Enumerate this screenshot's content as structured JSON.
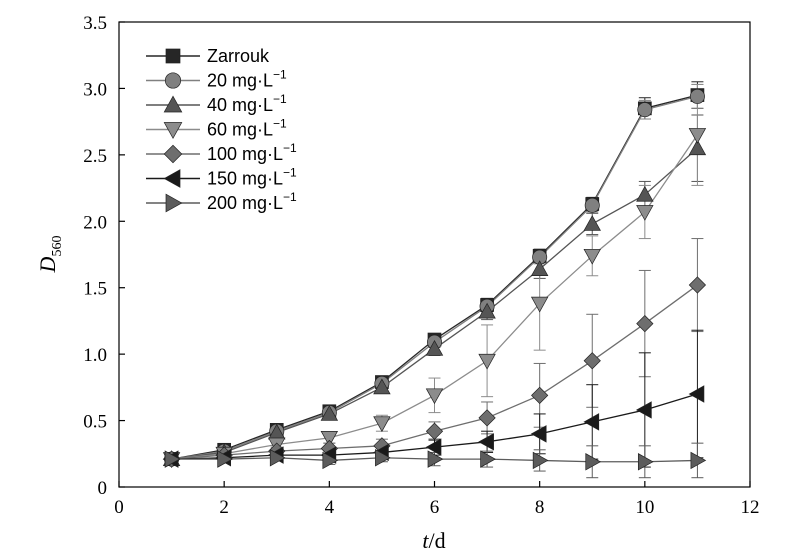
{
  "chart_data": {
    "type": "line",
    "x": [
      1,
      2,
      3,
      4,
      5,
      6,
      7,
      8,
      9,
      10,
      11
    ],
    "xlim": [
      0,
      12
    ],
    "ylim": [
      0,
      3.5
    ],
    "xticks": [
      0,
      2,
      4,
      6,
      8,
      10,
      12
    ],
    "yticks": [
      0,
      0.5,
      1.0,
      1.5,
      2.0,
      2.5,
      3.0,
      3.5
    ],
    "xtick_labels": [
      "0",
      "2",
      "4",
      "6",
      "8",
      "10",
      "12"
    ],
    "ytick_labels": [
      "0",
      "0.5",
      "1.0",
      "1.5",
      "2.0",
      "2.5",
      "3.0",
      "3.5"
    ],
    "xlabel": {
      "var": "t",
      "unit": "/d"
    },
    "ylabel": {
      "var": "D",
      "sub": "560"
    },
    "grid": false,
    "legend_position": "top-left",
    "series": [
      {
        "name": "Zarrouk",
        "sup": "",
        "marker": "square",
        "color": "#262626",
        "values": [
          0.21,
          0.28,
          0.43,
          0.57,
          0.79,
          1.11,
          1.37,
          1.74,
          2.13,
          2.85,
          2.95
        ],
        "errors": [
          0.02,
          0.02,
          0.03,
          0.03,
          0.04,
          0.04,
          0.05,
          0.05,
          0.05,
          0.08,
          0.1
        ]
      },
      {
        "name": "20 mg·L",
        "sup": "−1",
        "marker": "circle",
        "color": "#808080",
        "values": [
          0.21,
          0.27,
          0.42,
          0.56,
          0.78,
          1.09,
          1.36,
          1.73,
          2.12,
          2.84,
          2.94
        ],
        "errors": [
          0.02,
          0.02,
          0.03,
          0.03,
          0.04,
          0.04,
          0.05,
          0.05,
          0.05,
          0.07,
          0.09
        ]
      },
      {
        "name": "40 mg·L",
        "sup": "−1",
        "marker": "triangle-up",
        "color": "#555555",
        "values": [
          0.21,
          0.26,
          0.41,
          0.55,
          0.75,
          1.04,
          1.32,
          1.64,
          1.98,
          2.2,
          2.55
        ],
        "errors": [
          0.02,
          0.02,
          0.03,
          0.03,
          0.04,
          0.05,
          0.06,
          0.07,
          0.08,
          0.1,
          0.25
        ]
      },
      {
        "name": "60 mg·L",
        "sup": "−1",
        "marker": "triangle-down",
        "color": "#8c8c8c",
        "values": [
          0.21,
          0.25,
          0.32,
          0.37,
          0.48,
          0.69,
          0.95,
          1.38,
          1.74,
          2.07,
          2.65
        ],
        "errors": [
          0.02,
          0.02,
          0.03,
          0.04,
          0.06,
          0.13,
          0.27,
          0.35,
          0.15,
          0.2,
          0.38
        ]
      },
      {
        "name": "100 mg·L",
        "sup": "−1",
        "marker": "diamond",
        "color": "#6e6e6e",
        "values": [
          0.21,
          0.24,
          0.27,
          0.29,
          0.31,
          0.42,
          0.52,
          0.69,
          0.95,
          1.23,
          1.52
        ],
        "errors": [
          0.02,
          0.02,
          0.03,
          0.04,
          0.05,
          0.07,
          0.12,
          0.24,
          0.35,
          0.4,
          0.35
        ]
      },
      {
        "name": "150 mg·L",
        "sup": "−1",
        "marker": "triangle-left",
        "color": "#1a1a1a",
        "values": [
          0.21,
          0.22,
          0.24,
          0.24,
          0.26,
          0.3,
          0.34,
          0.4,
          0.49,
          0.58,
          0.7
        ],
        "errors": [
          0.02,
          0.02,
          0.02,
          0.03,
          0.04,
          0.06,
          0.08,
          0.15,
          0.28,
          0.43,
          0.48
        ]
      },
      {
        "name": "200 mg·L",
        "sup": "−1",
        "marker": "triangle-right",
        "color": "#5c5c5c",
        "values": [
          0.21,
          0.21,
          0.22,
          0.2,
          0.22,
          0.21,
          0.21,
          0.2,
          0.19,
          0.19,
          0.2
        ],
        "errors": [
          0.02,
          0.02,
          0.02,
          0.03,
          0.03,
          0.05,
          0.06,
          0.08,
          0.12,
          0.12,
          0.13
        ]
      }
    ]
  }
}
